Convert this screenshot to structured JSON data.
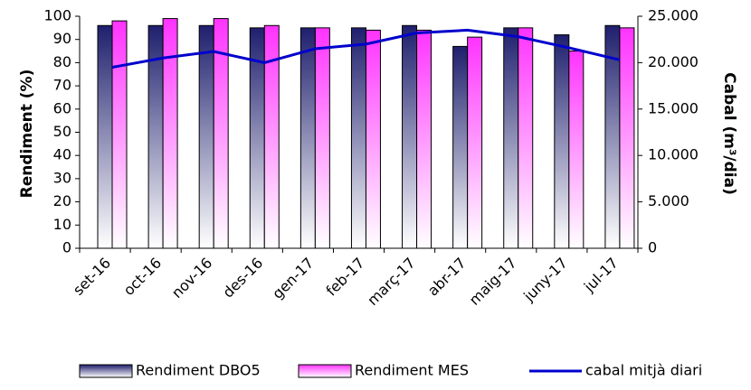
{
  "chart_data": {
    "type": "bar-line",
    "categories": [
      "set-16",
      "oct-16",
      "nov-16",
      "des-16",
      "gen-17",
      "feb-17",
      "març-17",
      "abr-17",
      "maig-17",
      "juny-17",
      "jul-17"
    ],
    "series": [
      {
        "name": "Rendiment DBO5",
        "color": "#1f1f6e",
        "type": "bar",
        "values": [
          96,
          96,
          96,
          95,
          95,
          95,
          96,
          87,
          95,
          92,
          96
        ]
      },
      {
        "name": "Rendiment MES",
        "color": "#ff33ff",
        "type": "bar",
        "values": [
          98,
          99,
          99,
          96,
          95,
          94,
          94,
          91,
          95,
          85,
          95
        ]
      },
      {
        "name": "cabal mitjà diari",
        "color": "#0000cc",
        "type": "line",
        "axis": "y2",
        "values": [
          19500,
          20500,
          21200,
          20000,
          21500,
          22000,
          23200,
          23500,
          22800,
          21600,
          20300
        ]
      }
    ],
    "y_label": "Rendiment (%)",
    "y2_label": "Cabal (m³/dia)",
    "ylim": [
      0,
      100
    ],
    "yticks": [
      0,
      10,
      20,
      30,
      40,
      50,
      60,
      70,
      80,
      90,
      100
    ],
    "y2lim": [
      0,
      25000
    ],
    "y2ticks": [
      0,
      {
        "value": 5000,
        "label": "5.000"
      },
      {
        "value": 10000,
        "label": "10.000"
      },
      {
        "value": 15000,
        "label": "15.000"
      },
      {
        "value": 20000,
        "label": "20.000"
      },
      {
        "value": 25000,
        "label": "25.000"
      }
    ],
    "legend": "bottom"
  }
}
